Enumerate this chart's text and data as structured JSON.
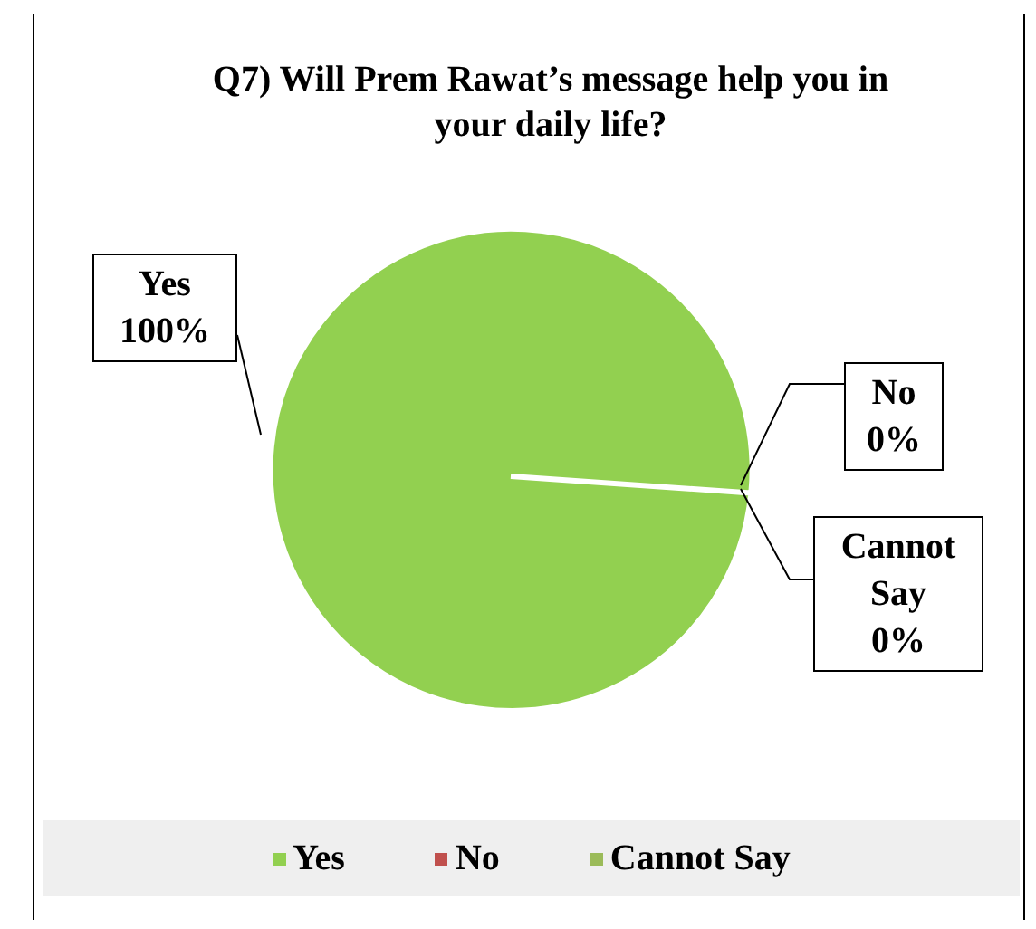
{
  "chart_data": {
    "type": "pie",
    "title": "Q7) Will Prem Rawat’s message help you in your daily life?",
    "categories": [
      "Yes",
      "No",
      "Cannot Say"
    ],
    "values": [
      100,
      0,
      0
    ],
    "value_labels": [
      "100%",
      "0%",
      "0%"
    ],
    "colors": [
      "#92d050",
      "#c0504d",
      "#9bbb59"
    ],
    "legend": "bottom"
  }
}
